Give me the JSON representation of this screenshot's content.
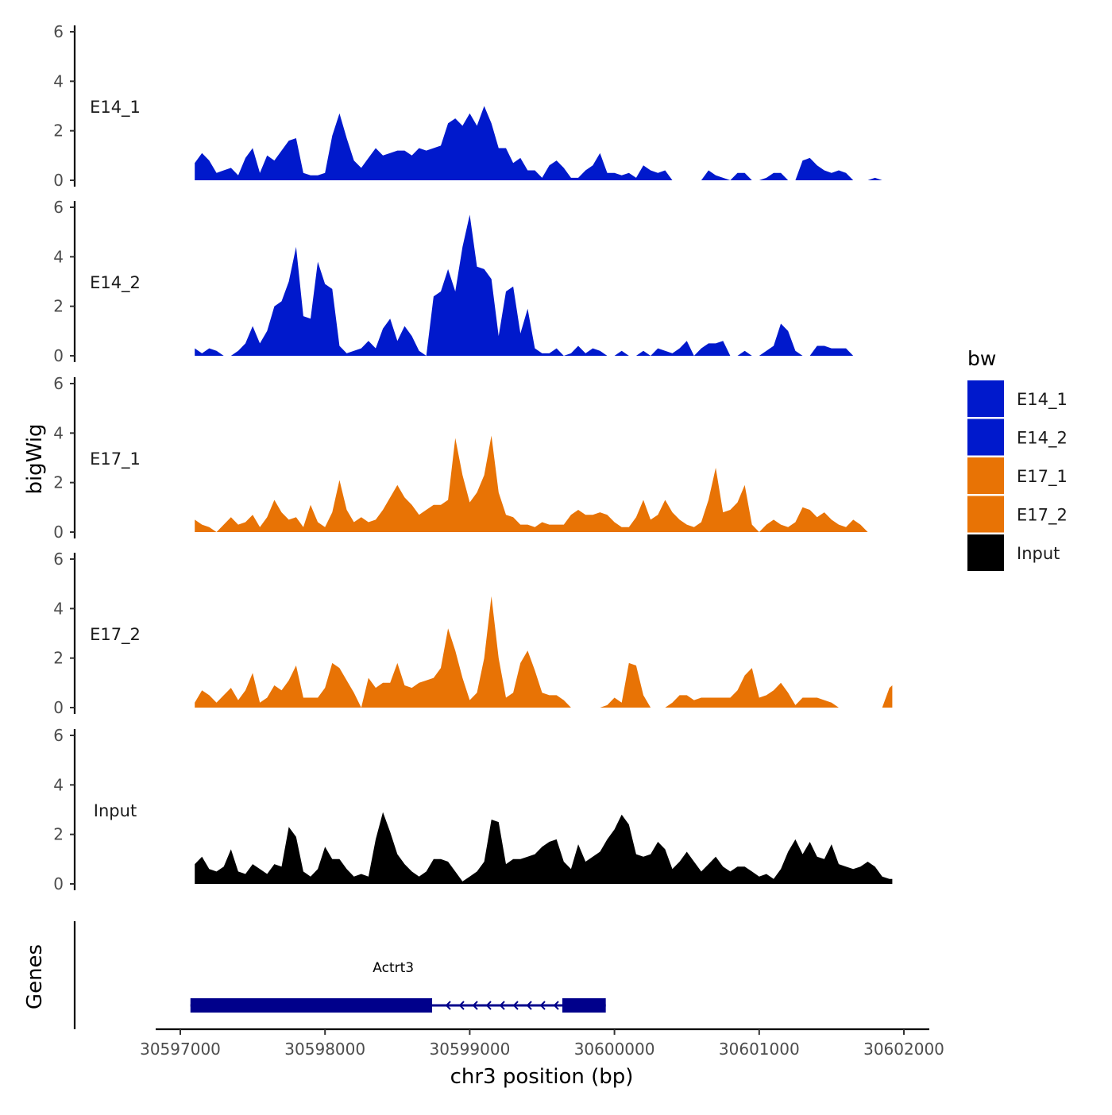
{
  "chart_data": {
    "type": "area",
    "title": "",
    "xlabel": "chr3 position (bp)",
    "ylabel": "bigWig",
    "genes_label": "Genes",
    "xlim": [
      30596800,
      30602150
    ],
    "ylim": [
      0,
      6
    ],
    "x_ticks": [
      30597000,
      30598000,
      30599000,
      30600000,
      30601000,
      30602000
    ],
    "x_tick_labels": [
      "30597000",
      "30598000",
      "30599000",
      "30600000",
      "30601000",
      "30602000"
    ],
    "y_ticks": [
      0,
      2,
      4,
      6
    ],
    "y_tick_labels": [
      "0",
      "2",
      "4",
      "6"
    ],
    "legend": {
      "title": "bw",
      "position": "right",
      "entries": [
        {
          "label": "E14_1",
          "color": "#0019cc"
        },
        {
          "label": "E14_2",
          "color": "#0019cc"
        },
        {
          "label": "E17_1",
          "color": "#e87305"
        },
        {
          "label": "E17_2",
          "color": "#e87305"
        },
        {
          "label": "Input",
          "color": "#000000"
        }
      ]
    },
    "series": [
      {
        "name": "E14_1",
        "color": "#0019cc",
        "x": [
          30597100,
          30597150,
          30597200,
          30597250,
          30597300,
          30597350,
          30597400,
          30597450,
          30597500,
          30597550,
          30597600,
          30597650,
          30597700,
          30597750,
          30597800,
          30597850,
          30597900,
          30597950,
          30598000,
          30598050,
          30598100,
          30598150,
          30598200,
          30598250,
          30598300,
          30598350,
          30598400,
          30598450,
          30598500,
          30598550,
          30598600,
          30598650,
          30598700,
          30598750,
          30598800,
          30598850,
          30598900,
          30598950,
          30599000,
          30599050,
          30599100,
          30599150,
          30599200,
          30599250,
          30599300,
          30599350,
          30599400,
          30599450,
          30599500,
          30599550,
          30599600,
          30599650,
          30599700,
          30599750,
          30599800,
          30599850,
          30599900,
          30599950,
          30600000,
          30600050,
          30600100,
          30600150,
          30600200,
          30600250,
          30600300,
          30600350,
          30600400,
          30600450,
          30600500,
          30600550,
          30600600,
          30600650,
          30600700,
          30600750,
          30600800,
          30600850,
          30600900,
          30600950,
          30601000,
          30601050,
          30601100,
          30601150,
          30601200,
          30601250,
          30601300,
          30601350,
          30601400,
          30601450,
          30601500,
          30601550,
          30601600,
          30601650,
          30601700,
          30601750,
          30601800,
          30601850,
          30601900,
          30601920
        ],
        "values": [
          0.7,
          1.1,
          0.8,
          0.3,
          0.4,
          0.5,
          0.2,
          0.9,
          1.3,
          0.3,
          1.0,
          0.8,
          1.2,
          1.6,
          1.7,
          0.3,
          0.2,
          0.2,
          0.3,
          1.8,
          2.7,
          1.7,
          0.8,
          0.5,
          0.9,
          1.3,
          1.0,
          1.1,
          1.2,
          1.2,
          1.0,
          1.3,
          1.2,
          1.3,
          1.4,
          2.3,
          2.5,
          2.2,
          2.7,
          2.2,
          3.0,
          2.3,
          1.3,
          1.3,
          0.7,
          0.9,
          0.4,
          0.4,
          0.1,
          0.6,
          0.8,
          0.5,
          0.1,
          0.1,
          0.4,
          0.6,
          1.1,
          0.3,
          0.3,
          0.2,
          0.3,
          0.1,
          0.6,
          0.4,
          0.3,
          0.4,
          0.0,
          0.0,
          0.0,
          0.0,
          0.0,
          0.4,
          0.2,
          0.1,
          0.0,
          0.3,
          0.3,
          0.0,
          0.0,
          0.1,
          0.3,
          0.3,
          0.0,
          0.0,
          0.8,
          0.9,
          0.6,
          0.4,
          0.3,
          0.4,
          0.3,
          0.0,
          0.0,
          0.0,
          0.1,
          0.0,
          0.0,
          0.0
        ]
      },
      {
        "name": "E14_2",
        "color": "#0019cc",
        "x": [
          30597100,
          30597150,
          30597200,
          30597250,
          30597300,
          30597350,
          30597400,
          30597450,
          30597500,
          30597550,
          30597600,
          30597650,
          30597700,
          30597750,
          30597800,
          30597850,
          30597900,
          30597950,
          30598000,
          30598050,
          30598100,
          30598150,
          30598200,
          30598250,
          30598300,
          30598350,
          30598400,
          30598450,
          30598500,
          30598550,
          30598600,
          30598650,
          30598700,
          30598750,
          30598800,
          30598850,
          30598900,
          30598950,
          30599000,
          30599050,
          30599100,
          30599150,
          30599200,
          30599250,
          30599300,
          30599350,
          30599400,
          30599450,
          30599500,
          30599550,
          30599600,
          30599650,
          30599700,
          30599750,
          30599800,
          30599850,
          30599900,
          30599950,
          30600000,
          30600050,
          30600100,
          30600150,
          30600200,
          30600250,
          30600300,
          30600350,
          30600400,
          30600450,
          30600500,
          30600550,
          30600600,
          30600650,
          30600700,
          30600750,
          30600800,
          30600850,
          30600900,
          30600950,
          30601000,
          30601050,
          30601100,
          30601150,
          30601200,
          30601250,
          30601300,
          30601350,
          30601400,
          30601450,
          30601500,
          30601550,
          30601600,
          30601650,
          30601700,
          30601750,
          30601800,
          30601850,
          30601900,
          30601920
        ],
        "values": [
          0.3,
          0.1,
          0.3,
          0.2,
          0.0,
          0.0,
          0.2,
          0.5,
          1.2,
          0.5,
          1.0,
          2.0,
          2.2,
          3.0,
          4.4,
          1.6,
          1.5,
          3.8,
          2.9,
          2.7,
          0.4,
          0.1,
          0.2,
          0.3,
          0.6,
          0.3,
          1.1,
          1.5,
          0.6,
          1.2,
          0.8,
          0.2,
          0.0,
          2.4,
          2.6,
          3.5,
          2.6,
          4.4,
          5.7,
          3.6,
          3.5,
          3.1,
          0.8,
          2.6,
          2.8,
          0.9,
          1.9,
          0.3,
          0.1,
          0.1,
          0.3,
          0.0,
          0.1,
          0.4,
          0.1,
          0.3,
          0.2,
          0.0,
          0.0,
          0.2,
          0.0,
          0.0,
          0.2,
          0.0,
          0.3,
          0.2,
          0.1,
          0.3,
          0.6,
          0.0,
          0.3,
          0.5,
          0.5,
          0.6,
          0.0,
          0.0,
          0.2,
          0.0,
          0.0,
          0.2,
          0.4,
          1.3,
          1.0,
          0.2,
          0.0,
          0.0,
          0.4,
          0.4,
          0.3,
          0.3,
          0.3,
          0.0,
          0.0,
          0.0,
          0.0,
          0.0,
          0.0,
          0.0
        ]
      },
      {
        "name": "E17_1",
        "color": "#e87305",
        "x": [
          30597100,
          30597150,
          30597200,
          30597250,
          30597300,
          30597350,
          30597400,
          30597450,
          30597500,
          30597550,
          30597600,
          30597650,
          30597700,
          30597750,
          30597800,
          30597850,
          30597900,
          30597950,
          30598000,
          30598050,
          30598100,
          30598150,
          30598200,
          30598250,
          30598300,
          30598350,
          30598400,
          30598450,
          30598500,
          30598550,
          30598600,
          30598650,
          30598700,
          30598750,
          30598800,
          30598850,
          30598900,
          30598950,
          30599000,
          30599050,
          30599100,
          30599150,
          30599200,
          30599250,
          30599300,
          30599350,
          30599400,
          30599450,
          30599500,
          30599550,
          30599600,
          30599650,
          30599700,
          30599750,
          30599800,
          30599850,
          30599900,
          30599950,
          30600000,
          30600050,
          30600100,
          30600150,
          30600200,
          30600250,
          30600300,
          30600350,
          30600400,
          30600450,
          30600500,
          30600550,
          30600600,
          30600650,
          30600700,
          30600750,
          30600800,
          30600850,
          30600900,
          30600950,
          30601000,
          30601050,
          30601100,
          30601150,
          30601200,
          30601250,
          30601300,
          30601350,
          30601400,
          30601450,
          30601500,
          30601550,
          30601600,
          30601650,
          30601700,
          30601750,
          30601800,
          30601850,
          30601900,
          30601920
        ],
        "values": [
          0.5,
          0.3,
          0.2,
          0.0,
          0.3,
          0.6,
          0.3,
          0.4,
          0.7,
          0.2,
          0.6,
          1.3,
          0.8,
          0.5,
          0.6,
          0.2,
          1.1,
          0.4,
          0.2,
          0.8,
          2.1,
          0.9,
          0.4,
          0.6,
          0.4,
          0.5,
          0.9,
          1.4,
          1.9,
          1.4,
          1.1,
          0.7,
          0.9,
          1.1,
          1.1,
          1.3,
          3.8,
          2.3,
          1.2,
          1.6,
          2.3,
          3.9,
          1.6,
          0.7,
          0.6,
          0.3,
          0.3,
          0.2,
          0.4,
          0.3,
          0.3,
          0.3,
          0.7,
          0.9,
          0.7,
          0.7,
          0.8,
          0.7,
          0.4,
          0.2,
          0.2,
          0.6,
          1.3,
          0.5,
          0.7,
          1.3,
          0.8,
          0.5,
          0.3,
          0.2,
          0.4,
          1.3,
          2.6,
          0.8,
          0.9,
          1.2,
          1.9,
          0.3,
          0.0,
          0.3,
          0.5,
          0.3,
          0.2,
          0.4,
          1.0,
          0.9,
          0.6,
          0.8,
          0.5,
          0.3,
          0.2,
          0.5,
          0.3,
          0.0,
          0.0,
          0.0,
          0.0,
          0.0
        ]
      },
      {
        "name": "E17_2",
        "color": "#e87305",
        "x": [
          30597100,
          30597150,
          30597200,
          30597250,
          30597300,
          30597350,
          30597400,
          30597450,
          30597500,
          30597550,
          30597600,
          30597650,
          30597700,
          30597750,
          30597800,
          30597850,
          30597900,
          30597950,
          30598000,
          30598050,
          30598100,
          30598150,
          30598200,
          30598250,
          30598300,
          30598350,
          30598400,
          30598450,
          30598500,
          30598550,
          30598600,
          30598650,
          30598700,
          30598750,
          30598800,
          30598850,
          30598900,
          30598950,
          30599000,
          30599050,
          30599100,
          30599150,
          30599200,
          30599250,
          30599300,
          30599350,
          30599400,
          30599450,
          30599500,
          30599550,
          30599600,
          30599650,
          30599700,
          30599750,
          30599800,
          30599850,
          30599900,
          30599950,
          30600000,
          30600050,
          30600100,
          30600150,
          30600200,
          30600250,
          30600300,
          30600350,
          30600400,
          30600450,
          30600500,
          30600550,
          30600600,
          30600650,
          30600700,
          30600750,
          30600800,
          30600850,
          30600900,
          30600950,
          30601000,
          30601050,
          30601100,
          30601150,
          30601200,
          30601250,
          30601300,
          30601350,
          30601400,
          30601450,
          30601500,
          30601550,
          30601600,
          30601650,
          30601700,
          30601750,
          30601800,
          30601850,
          30601900,
          30601920
        ],
        "values": [
          0.2,
          0.7,
          0.5,
          0.2,
          0.5,
          0.8,
          0.3,
          0.7,
          1.4,
          0.2,
          0.4,
          0.9,
          0.7,
          1.1,
          1.7,
          0.4,
          0.4,
          0.4,
          0.8,
          1.8,
          1.6,
          1.1,
          0.6,
          0.0,
          1.2,
          0.8,
          1.0,
          1.0,
          1.8,
          0.9,
          0.8,
          1.0,
          1.1,
          1.2,
          1.6,
          3.2,
          2.3,
          1.2,
          0.3,
          0.6,
          2.0,
          4.5,
          2.0,
          0.4,
          0.6,
          1.8,
          2.3,
          1.5,
          0.6,
          0.5,
          0.5,
          0.3,
          0.0,
          0.0,
          0.0,
          0.0,
          0.0,
          0.1,
          0.4,
          0.2,
          1.8,
          1.7,
          0.5,
          0.0,
          0.0,
          0.0,
          0.2,
          0.5,
          0.5,
          0.3,
          0.4,
          0.4,
          0.4,
          0.4,
          0.4,
          0.7,
          1.3,
          1.6,
          0.4,
          0.5,
          0.7,
          1.0,
          0.6,
          0.1,
          0.4,
          0.4,
          0.4,
          0.3,
          0.2,
          0.0,
          0.0,
          0.0,
          0.0,
          0.0,
          0.0,
          0.0,
          0.8,
          0.9
        ]
      },
      {
        "name": "Input",
        "color": "#000000",
        "x": [
          30597100,
          30597150,
          30597200,
          30597250,
          30597300,
          30597350,
          30597400,
          30597450,
          30597500,
          30597550,
          30597600,
          30597650,
          30597700,
          30597750,
          30597800,
          30597850,
          30597900,
          30597950,
          30598000,
          30598050,
          30598100,
          30598150,
          30598200,
          30598250,
          30598300,
          30598350,
          30598400,
          30598450,
          30598500,
          30598550,
          30598600,
          30598650,
          30598700,
          30598750,
          30598800,
          30598850,
          30598900,
          30598950,
          30599000,
          30599050,
          30599100,
          30599150,
          30599200,
          30599250,
          30599300,
          30599350,
          30599400,
          30599450,
          30599500,
          30599550,
          30599600,
          30599650,
          30599700,
          30599750,
          30599800,
          30599850,
          30599900,
          30599950,
          30600000,
          30600050,
          30600100,
          30600150,
          30600200,
          30600250,
          30600300,
          30600350,
          30600400,
          30600450,
          30600500,
          30600550,
          30600600,
          30600650,
          30600700,
          30600750,
          30600800,
          30600850,
          30600900,
          30600950,
          30601000,
          30601050,
          30601100,
          30601150,
          30601200,
          30601250,
          30601300,
          30601350,
          30601400,
          30601450,
          30601500,
          30601550,
          30601600,
          30601650,
          30601700,
          30601750,
          30601800,
          30601850,
          30601900,
          30601920
        ],
        "values": [
          0.8,
          1.1,
          0.6,
          0.5,
          0.7,
          1.4,
          0.5,
          0.4,
          0.8,
          0.6,
          0.4,
          0.8,
          0.7,
          2.3,
          1.9,
          0.5,
          0.3,
          0.6,
          1.5,
          1.0,
          1.0,
          0.6,
          0.3,
          0.4,
          0.3,
          1.8,
          2.9,
          2.1,
          1.2,
          0.8,
          0.5,
          0.3,
          0.5,
          1.0,
          1.0,
          0.9,
          0.5,
          0.1,
          0.3,
          0.5,
          0.9,
          2.6,
          2.5,
          0.8,
          1.0,
          1.0,
          1.1,
          1.2,
          1.5,
          1.7,
          1.8,
          0.9,
          0.6,
          1.6,
          0.9,
          1.1,
          1.3,
          1.8,
          2.2,
          2.8,
          2.4,
          1.2,
          1.1,
          1.2,
          1.7,
          1.4,
          0.6,
          0.9,
          1.3,
          0.9,
          0.5,
          0.8,
          1.1,
          0.7,
          0.5,
          0.7,
          0.7,
          0.5,
          0.3,
          0.4,
          0.2,
          0.6,
          1.3,
          1.8,
          1.2,
          1.7,
          1.1,
          1.0,
          1.6,
          0.8,
          0.7,
          0.6,
          0.7,
          0.9,
          0.7,
          0.3,
          0.2,
          0.2
        ]
      }
    ],
    "gene_track": {
      "name": "Actrt3",
      "strand": "-",
      "start": 30597070,
      "end": 30599940,
      "exons": [
        [
          30597070,
          30598740
        ],
        [
          30599640,
          30599940
        ]
      ],
      "color": "#00008b"
    }
  }
}
